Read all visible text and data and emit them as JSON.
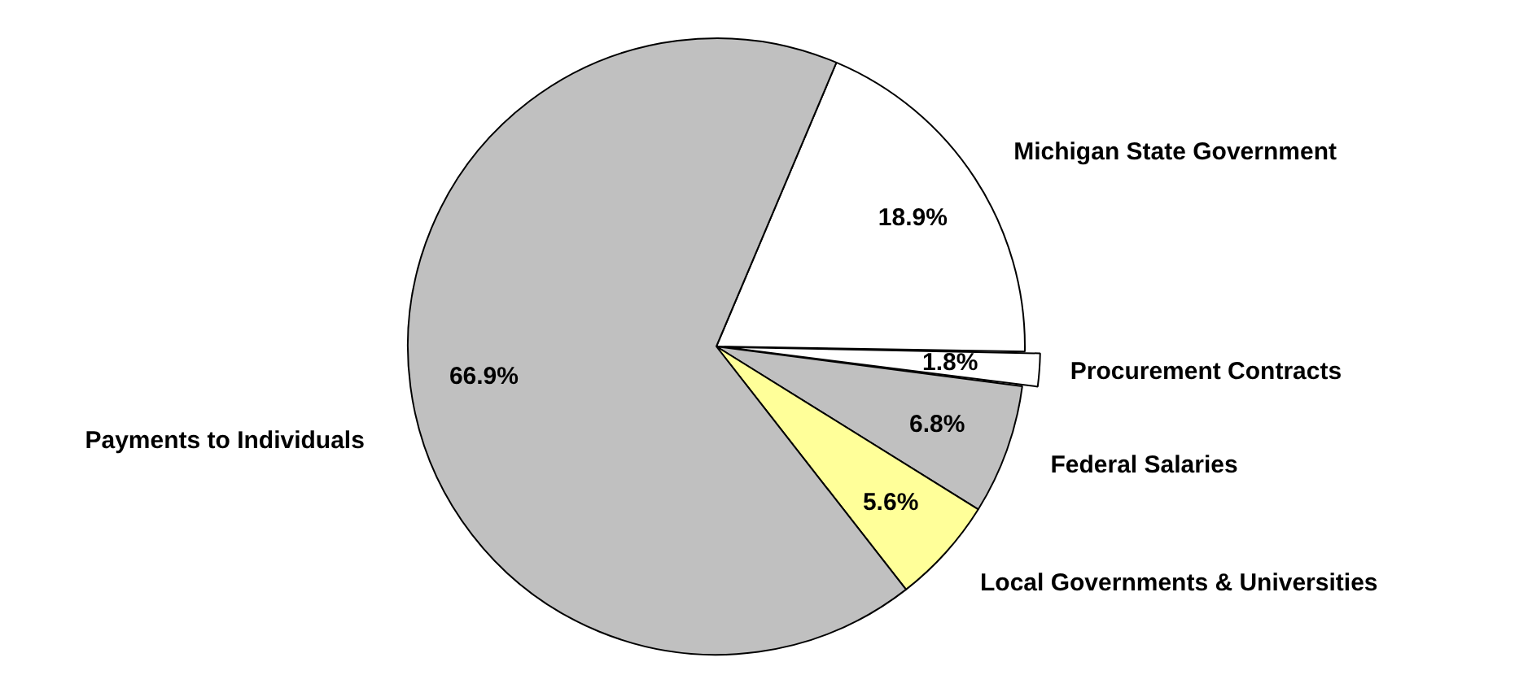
{
  "chart_data": {
    "type": "pie",
    "categories": [
      "Michigan State Government",
      "Procurement Contracts",
      "Federal Salaries",
      "Local Governments & Universities",
      "Payments to Individuals"
    ],
    "values": [
      18.9,
      1.8,
      6.8,
      5.6,
      66.9
    ],
    "value_labels": [
      "18.9%",
      "1.8%",
      "6.8%",
      "5.6%",
      "66.9%"
    ],
    "colors": [
      "#ffffff",
      "#ffffff",
      "#c0c0c0",
      "#ffff99",
      "#c0c0c0"
    ],
    "legend": false
  }
}
